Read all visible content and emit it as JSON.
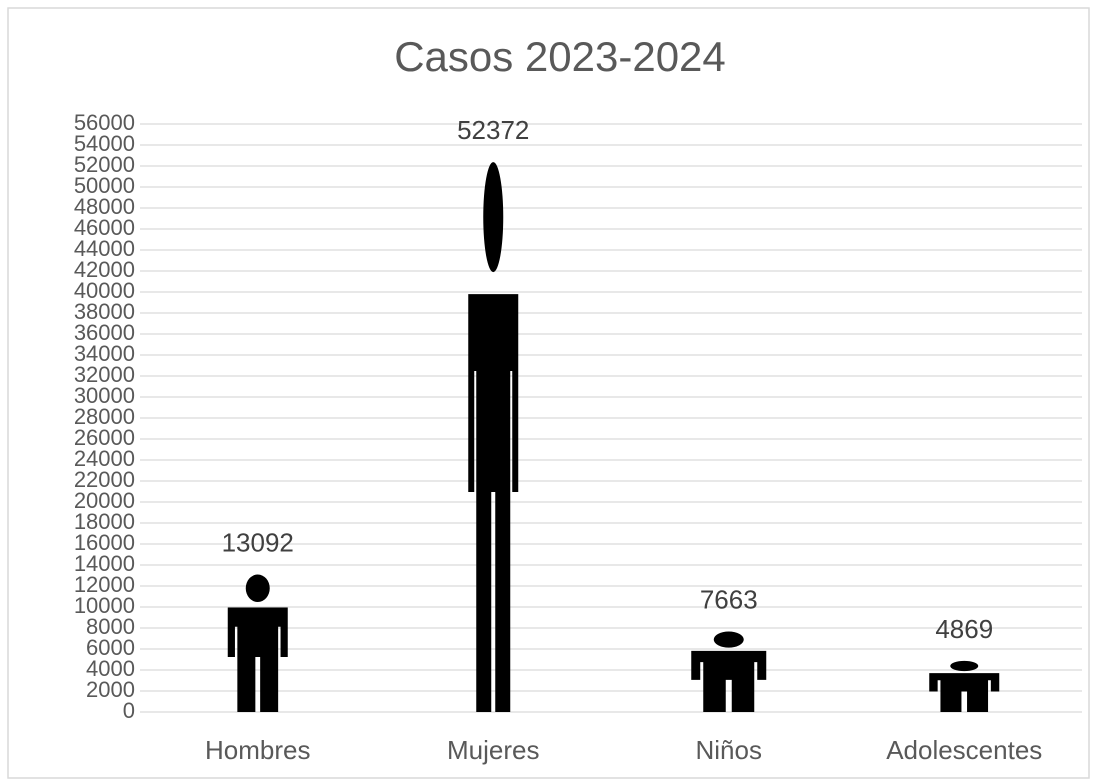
{
  "chart_data": {
    "type": "pictograph",
    "title": "Casos 2023-2024",
    "categories": [
      "Hombres",
      "Mujeres",
      "Niños",
      "Adolescentes"
    ],
    "values": [
      13092,
      52372,
      7663,
      4869
    ],
    "color": "#000000",
    "ylim": [
      0,
      56000
    ],
    "yticks": [
      0,
      2000,
      4000,
      6000,
      8000,
      10000,
      12000,
      14000,
      16000,
      18000,
      20000,
      22000,
      24000,
      26000,
      28000,
      30000,
      32000,
      34000,
      36000,
      38000,
      40000,
      42000,
      44000,
      46000,
      48000,
      50000,
      52000,
      54000,
      56000
    ],
    "grid": true
  }
}
